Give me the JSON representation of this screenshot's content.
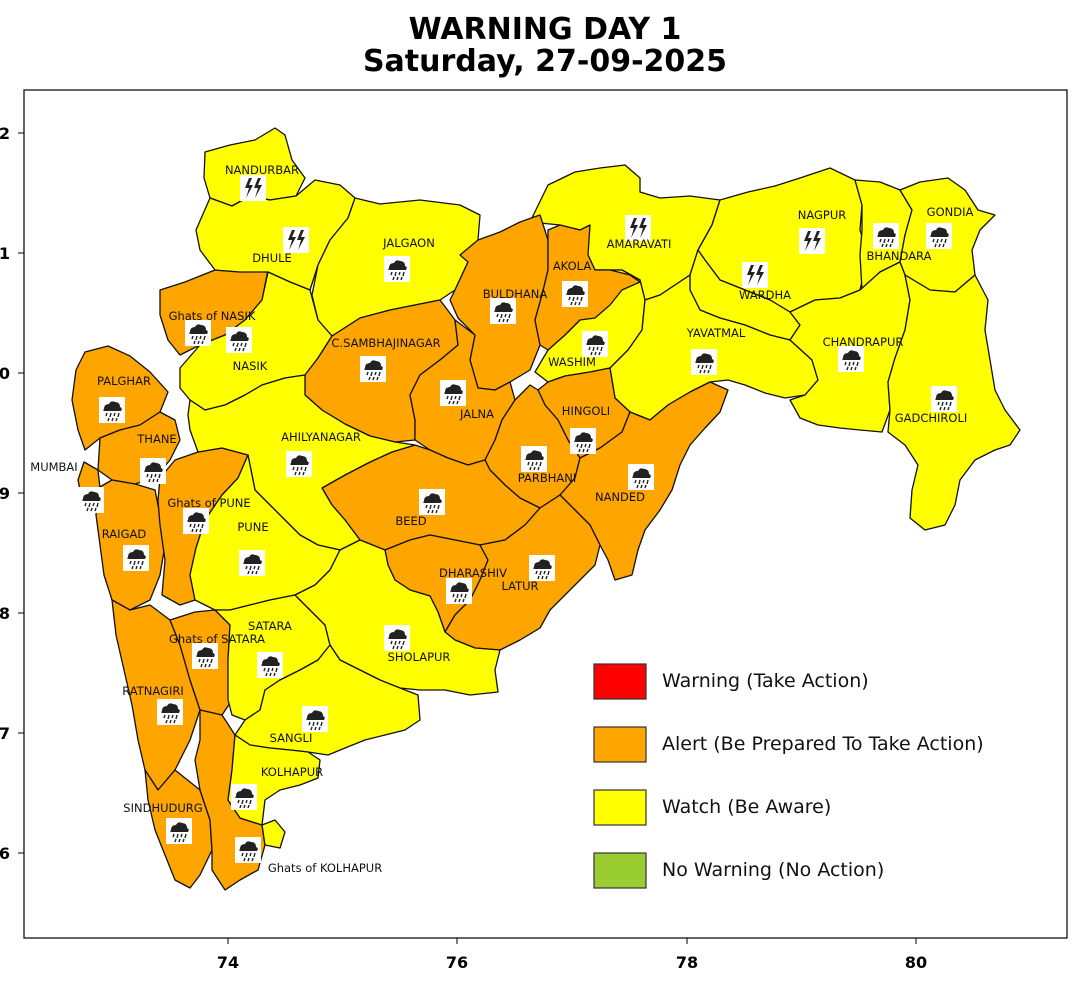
{
  "title": {
    "line1": "WARNING DAY 1",
    "line2": "Saturday, 27-09-2025"
  },
  "axes": {
    "x_ticks": [
      "74",
      "76",
      "78",
      "80"
    ],
    "y_ticks": [
      "2",
      "1",
      "0",
      "9",
      "8",
      "7",
      "6"
    ]
  },
  "colors": {
    "warning": "#ff0000",
    "alert": "#ffa500",
    "watch": "#ffff00",
    "no_warning": "#9acd32"
  },
  "legend": [
    {
      "label": "Warning (Take Action)",
      "color": "#ff0000"
    },
    {
      "label": "Alert (Be Prepared To Take Action)",
      "color": "#ffa500"
    },
    {
      "label": "Watch (Be Aware)",
      "color": "#ffff00"
    },
    {
      "label": "No Warning (No Action)",
      "color": "#9acd32"
    }
  ],
  "districts": [
    {
      "name": "NANDURBAR",
      "level": "watch",
      "icon": "thunderstorm-icon"
    },
    {
      "name": "DHULE",
      "level": "watch",
      "icon": "thunderstorm-icon"
    },
    {
      "name": "JALGAON",
      "level": "watch",
      "icon": "heavy-rain-icon"
    },
    {
      "name": "AMARAVATI",
      "level": "watch",
      "icon": "thunderstorm-icon"
    },
    {
      "name": "NAGPUR",
      "level": "watch",
      "icon": "thunderstorm-icon"
    },
    {
      "name": "BHANDARA",
      "level": "watch",
      "icon": "heavy-rain-icon"
    },
    {
      "name": "GONDIA",
      "level": "watch",
      "icon": "heavy-rain-icon"
    },
    {
      "name": "WARDHA",
      "level": "watch",
      "icon": "thunderstorm-icon"
    },
    {
      "name": "AKOLA",
      "level": "alert",
      "icon": "heavy-rain-icon"
    },
    {
      "name": "BULDHANA",
      "level": "alert",
      "icon": "heavy-rain-icon"
    },
    {
      "name": "WASHIM",
      "level": "watch",
      "icon": "heavy-rain-icon"
    },
    {
      "name": "YAVATMAL",
      "level": "watch",
      "icon": "heavy-rain-icon"
    },
    {
      "name": "CHANDRAPUR",
      "level": "watch",
      "icon": "heavy-rain-icon"
    },
    {
      "name": "GADCHIROLI",
      "level": "watch",
      "icon": "heavy-rain-icon"
    },
    {
      "name": "Ghats of NASIK",
      "level": "alert",
      "icon": "heavy-rain-icon"
    },
    {
      "name": "NASIK",
      "level": "watch",
      "icon": "heavy-rain-icon"
    },
    {
      "name": "C.SAMBHAJINAGAR",
      "level": "alert",
      "icon": "heavy-rain-icon"
    },
    {
      "name": "JALNA",
      "level": "alert",
      "icon": "heavy-rain-icon"
    },
    {
      "name": "HINGOLI",
      "level": "alert",
      "icon": "heavy-rain-icon"
    },
    {
      "name": "PARBHANI",
      "level": "alert",
      "icon": "heavy-rain-icon"
    },
    {
      "name": "NANDED",
      "level": "alert",
      "icon": "heavy-rain-icon"
    },
    {
      "name": "PALGHAR",
      "level": "alert",
      "icon": "heavy-rain-icon"
    },
    {
      "name": "THANE",
      "level": "alert",
      "icon": "heavy-rain-icon"
    },
    {
      "name": "MUMBAI",
      "level": "alert",
      "icon": "heavy-rain-icon"
    },
    {
      "name": "AHILYANAGAR",
      "level": "watch",
      "icon": "heavy-rain-icon"
    },
    {
      "name": "BEED",
      "level": "alert",
      "icon": "heavy-rain-icon"
    },
    {
      "name": "Ghats of PUNE",
      "level": "alert",
      "icon": "heavy-rain-icon"
    },
    {
      "name": "PUNE",
      "level": "watch",
      "icon": "heavy-rain-icon"
    },
    {
      "name": "RAIGAD",
      "level": "alert",
      "icon": "heavy-rain-icon"
    },
    {
      "name": "DHARASHIV",
      "level": "alert",
      "icon": "heavy-rain-icon"
    },
    {
      "name": "LATUR",
      "level": "alert",
      "icon": "heavy-rain-icon"
    },
    {
      "name": "SHOLAPUR",
      "level": "watch",
      "icon": "heavy-rain-icon"
    },
    {
      "name": "SATARA",
      "level": "watch",
      "icon": "heavy-rain-icon"
    },
    {
      "name": "Ghats of SATARA",
      "level": "alert",
      "icon": "heavy-rain-icon"
    },
    {
      "name": "RATNAGIRI",
      "level": "alert",
      "icon": "heavy-rain-icon"
    },
    {
      "name": "SANGLI",
      "level": "watch",
      "icon": "heavy-rain-icon"
    },
    {
      "name": "KOLHAPUR",
      "level": "watch",
      "icon": "heavy-rain-icon"
    },
    {
      "name": "SINDHUDURG",
      "level": "alert",
      "icon": "heavy-rain-icon"
    },
    {
      "name": "Ghats of KOLHAPUR",
      "level": "alert",
      "icon": "heavy-rain-icon"
    }
  ]
}
